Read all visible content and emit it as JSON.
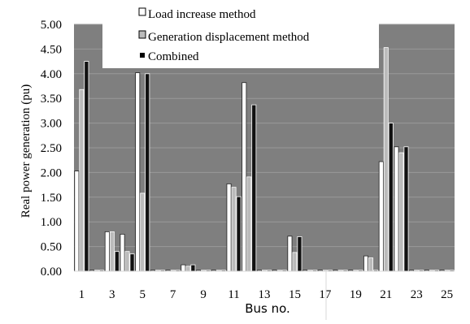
{
  "chart_data": {
    "type": "bar",
    "title": "",
    "xlabel": "Bus no.",
    "ylabel": "Real power generation (pu)",
    "ylim": [
      0,
      5
    ],
    "yticks": [
      "0.00",
      "0.50",
      "1.00",
      "1.50",
      "2.00",
      "2.50",
      "3.00",
      "3.50",
      "4.00",
      "4.50",
      "5.00"
    ],
    "xtick_labels": [
      "1",
      "3",
      "5",
      "7",
      "9",
      "11",
      "13",
      "15",
      "17",
      "19",
      "21",
      "23",
      "25"
    ],
    "categories": [
      "1",
      "2",
      "3",
      "4",
      "5",
      "6",
      "7",
      "8",
      "9",
      "10",
      "11",
      "12",
      "13",
      "14",
      "15",
      "16",
      "17",
      "18",
      "19",
      "20",
      "21",
      "22",
      "23",
      "24",
      "25"
    ],
    "grid": true,
    "legend_position": "top",
    "series": [
      {
        "name": "Load increase method",
        "color": "#ffffff",
        "values": [
          2.03,
          0.0,
          0.8,
          0.75,
          4.02,
          0.0,
          0.0,
          0.13,
          0.0,
          0.0,
          1.77,
          3.82,
          0.0,
          0.0,
          0.71,
          0.0,
          0.0,
          0.0,
          0.0,
          0.31,
          2.22,
          2.52,
          0.0,
          0.0,
          0.0
        ]
      },
      {
        "name": "Generation displacement method",
        "color": "#bbbbbb",
        "values": [
          3.68,
          0.0,
          0.8,
          0.4,
          1.58,
          0.0,
          0.0,
          0.1,
          0.0,
          0.0,
          1.7,
          1.91,
          0.0,
          0.0,
          0.38,
          0.0,
          0.0,
          0.0,
          0.0,
          0.27,
          4.53,
          2.4,
          0.0,
          0.0,
          0.0
        ]
      },
      {
        "name": "Combined",
        "color": "#111111",
        "values": [
          4.25,
          0.0,
          0.4,
          0.35,
          4.0,
          0.0,
          0.0,
          0.13,
          0.0,
          0.0,
          1.51,
          3.37,
          0.0,
          0.0,
          0.7,
          0.0,
          0.0,
          0.0,
          0.0,
          0.0,
          3.0,
          2.52,
          0.0,
          0.0,
          0.0
        ]
      }
    ],
    "colors": {
      "plot_background": "#7f7f7f",
      "gridline": "#9a9a9a",
      "axis_text": "#000000",
      "legend_background": "#ffffff"
    }
  }
}
